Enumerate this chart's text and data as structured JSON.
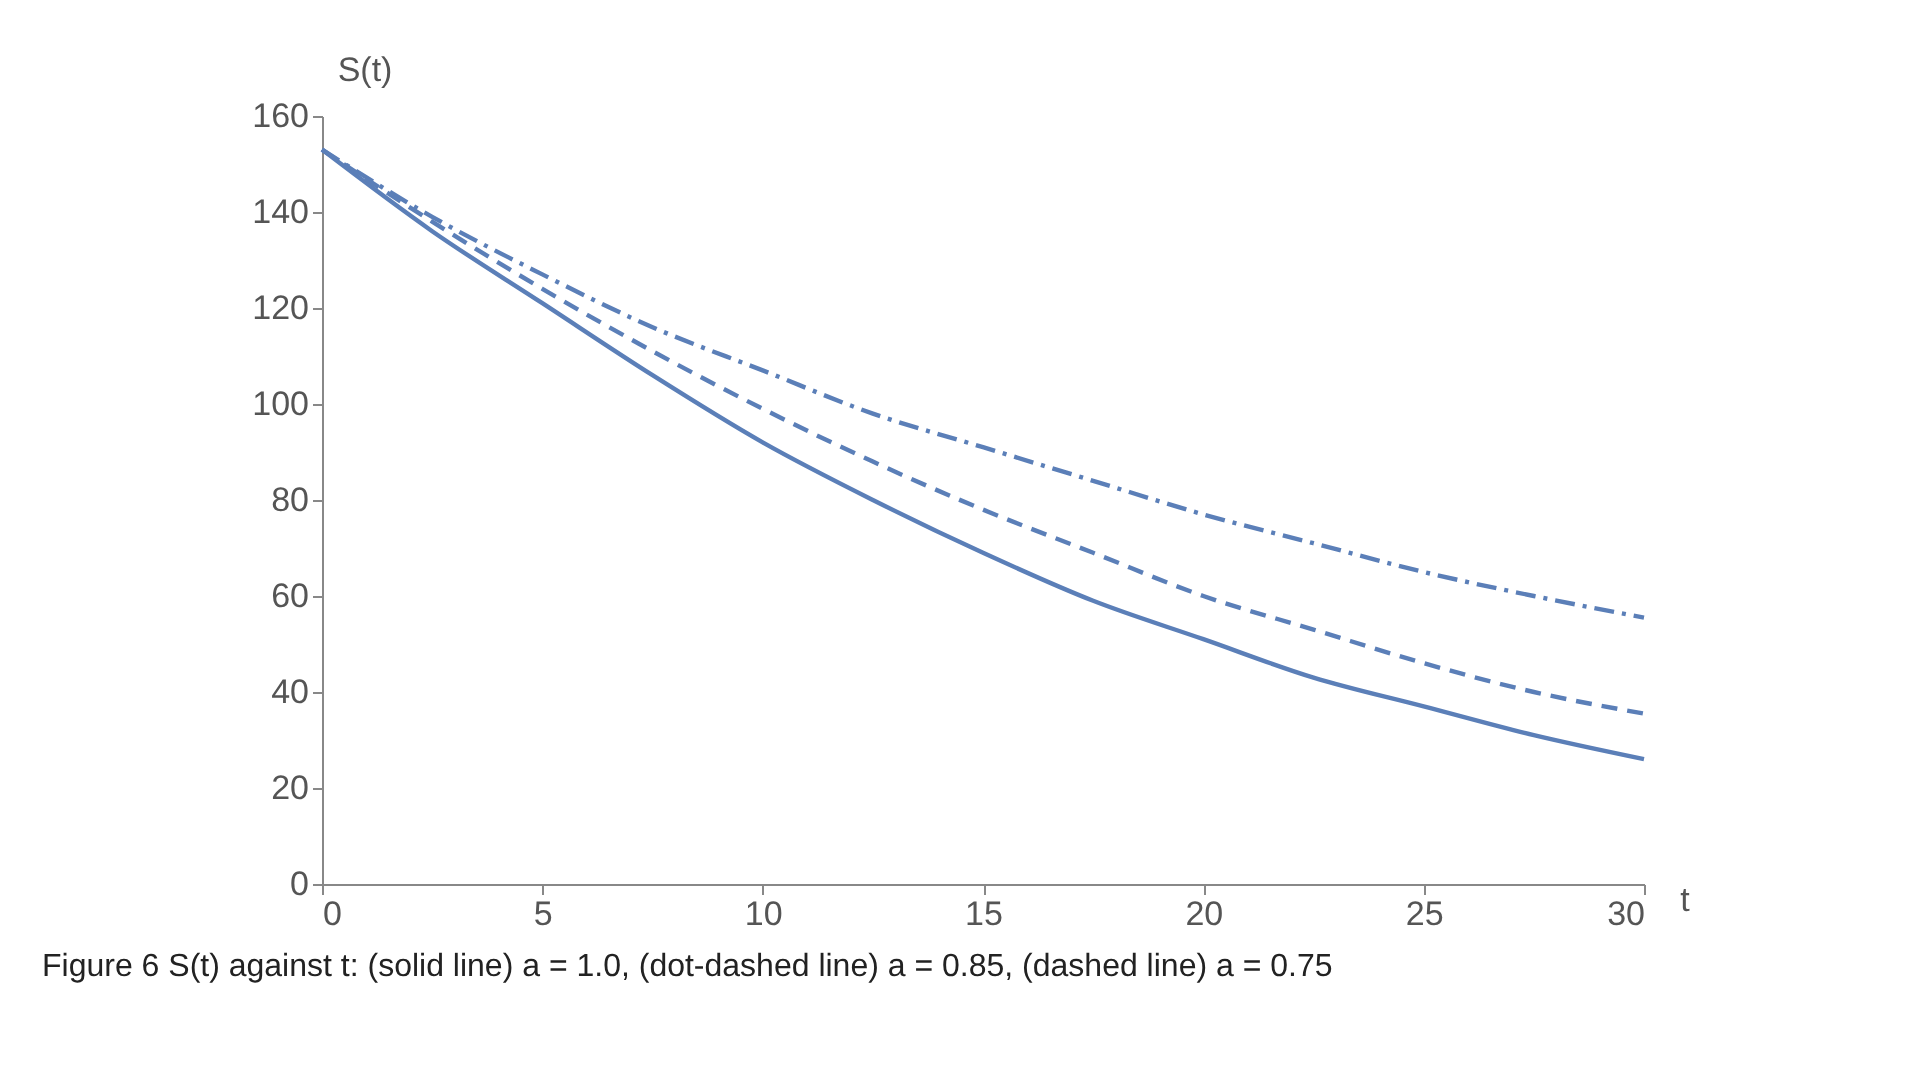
{
  "chart_data": {
    "type": "line",
    "xlabel": "t",
    "ylabel": "S(t)",
    "x": [
      0,
      2.5,
      5,
      7.5,
      10,
      12.5,
      15,
      17.5,
      20,
      22.5,
      25,
      27.5,
      30
    ],
    "series": [
      {
        "color": "#5b7fb8",
        "line_style": "solid",
        "values": [
          153,
          136,
          121,
          106,
          92,
          80,
          69,
          59,
          51,
          43,
          37,
          31,
          26
        ]
      },
      {
        "color": "#5b7fb8",
        "line_style": "dashdot",
        "values": [
          153,
          139,
          127,
          116,
          107,
          98,
          91,
          84,
          77,
          71,
          65,
          60,
          55.5
        ]
      },
      {
        "color": "#5b7fb8",
        "line_style": "dashed",
        "values": [
          153,
          138,
          124,
          111,
          99,
          88,
          78,
          69,
          60,
          53,
          46,
          40,
          35.5
        ]
      }
    ],
    "xlim": [
      0,
      30
    ],
    "xticks": [
      0,
      5,
      10,
      15,
      20,
      25,
      30
    ],
    "ylim": [
      0,
      160
    ],
    "yticks": [
      0,
      20,
      40,
      60,
      80,
      100,
      120,
      140,
      160
    ],
    "grid": false,
    "legend": false,
    "marker": "none",
    "annotations": [
      "Figure 6  S(t) against t: (solid line) a = 1.0, (dot-dashed line) a = 0.85, (dashed line) a = 0.75"
    ]
  }
}
